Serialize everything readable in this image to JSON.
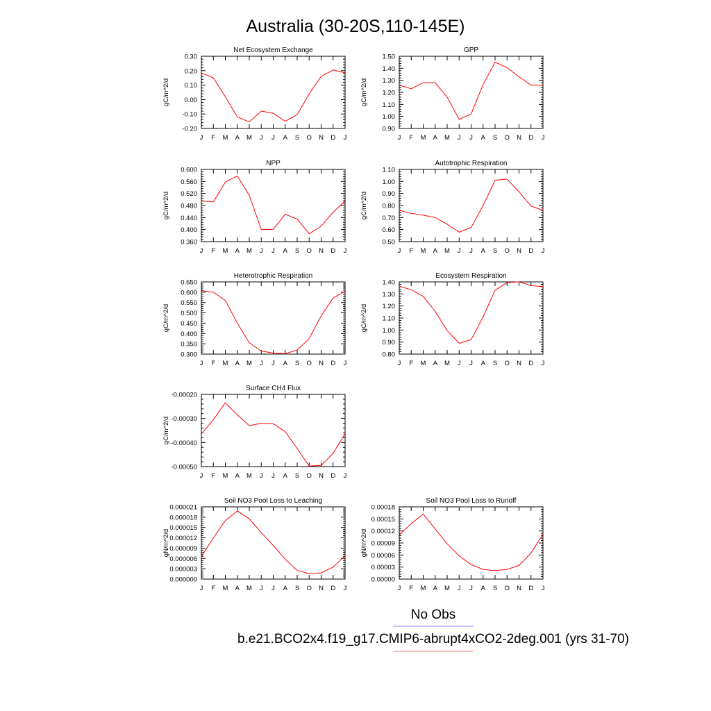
{
  "page": {
    "title": "Australia (30-20S,110-145E)"
  },
  "legend": {
    "obs_label": "No Obs",
    "obs_color": "#7b7bff",
    "case_label": "b.e21.BCO2x4.f19_g17.CMIP6-abrupt4xCO2-2deg.001 (yrs 31-70)",
    "case_color": "#ff7b7b"
  },
  "series_color": "#ff0000",
  "chart_data": [
    {
      "type": "line",
      "title": "Net Ecosystem Exchange",
      "ylabel": "gC/m^2/d",
      "categories": [
        "J",
        "F",
        "M",
        "A",
        "M",
        "J",
        "J",
        "A",
        "S",
        "O",
        "N",
        "D",
        "J"
      ],
      "yticks": [
        "0.30",
        "0.20",
        "0.10",
        "0.00",
        "-0.10",
        "-0.20"
      ],
      "ylim": [
        -0.2,
        0.3
      ],
      "values": [
        0.185,
        0.15,
        0.02,
        -0.12,
        -0.155,
        -0.08,
        -0.095,
        -0.15,
        -0.105,
        0.04,
        0.16,
        0.205,
        0.185
      ],
      "grid": false
    },
    {
      "type": "line",
      "title": "GPP",
      "ylabel": "gC/m^2/d",
      "categories": [
        "J",
        "F",
        "M",
        "A",
        "M",
        "J",
        "J",
        "A",
        "S",
        "O",
        "N",
        "D",
        "J"
      ],
      "yticks": [
        "1.50",
        "1.40",
        "1.30",
        "1.20",
        "1.10",
        "1.00",
        "0.90"
      ],
      "ylim": [
        0.9,
        1.5
      ],
      "values": [
        1.26,
        1.23,
        1.28,
        1.28,
        1.16,
        0.975,
        1.02,
        1.265,
        1.45,
        1.405,
        1.33,
        1.26,
        1.26
      ],
      "grid": false
    },
    {
      "type": "line",
      "title": "NPP",
      "ylabel": "gC/m^2/d",
      "categories": [
        "J",
        "F",
        "M",
        "A",
        "M",
        "J",
        "J",
        "A",
        "S",
        "O",
        "N",
        "D",
        "J"
      ],
      "yticks": [
        "0.600",
        "0.560",
        "0.520",
        "0.480",
        "0.440",
        "0.400",
        "0.360"
      ],
      "ylim": [
        0.36,
        0.6
      ],
      "values": [
        0.495,
        0.492,
        0.558,
        0.578,
        0.514,
        0.4,
        0.401,
        0.451,
        0.435,
        0.386,
        0.411,
        0.458,
        0.495
      ],
      "grid": false
    },
    {
      "type": "line",
      "title": "Autotrophic Respiration",
      "ylabel": "gC/m^2/d",
      "categories": [
        "J",
        "F",
        "M",
        "A",
        "M",
        "J",
        "J",
        "A",
        "S",
        "O",
        "N",
        "D",
        "J"
      ],
      "yticks": [
        "1.10",
        "1.00",
        "0.90",
        "0.80",
        "0.70",
        "0.60",
        "0.50"
      ],
      "ylim": [
        0.5,
        1.1
      ],
      "values": [
        0.76,
        0.735,
        0.72,
        0.7,
        0.645,
        0.578,
        0.618,
        0.8,
        1.01,
        1.02,
        0.915,
        0.795,
        0.76
      ],
      "grid": false
    },
    {
      "type": "line",
      "title": "Heterotrophic Respiration",
      "ylabel": "gC/m^2/d",
      "categories": [
        "J",
        "F",
        "M",
        "A",
        "M",
        "J",
        "J",
        "A",
        "S",
        "O",
        "N",
        "D",
        "J"
      ],
      "yticks": [
        "0.650",
        "0.600",
        "0.550",
        "0.500",
        "0.450",
        "0.400",
        "0.350",
        "0.300"
      ],
      "ylim": [
        0.3,
        0.65
      ],
      "values": [
        0.607,
        0.6,
        0.56,
        0.45,
        0.355,
        0.315,
        0.305,
        0.302,
        0.32,
        0.375,
        0.485,
        0.572,
        0.605
      ],
      "grid": false
    },
    {
      "type": "line",
      "title": "Ecosystem Respiration",
      "ylabel": "gC/m^2/d",
      "categories": [
        "J",
        "F",
        "M",
        "A",
        "M",
        "J",
        "J",
        "A",
        "S",
        "O",
        "N",
        "D",
        "J"
      ],
      "yticks": [
        "1.40",
        "1.30",
        "1.20",
        "1.10",
        "1.00",
        "0.90",
        "0.80"
      ],
      "ylim": [
        0.8,
        1.4
      ],
      "values": [
        1.365,
        1.335,
        1.28,
        1.155,
        0.995,
        0.89,
        0.92,
        1.11,
        1.33,
        1.395,
        1.4,
        1.37,
        1.36
      ],
      "grid": false
    },
    {
      "type": "line",
      "title": "Surface CH4 Flux",
      "ylabel": "gC/m^2/d",
      "categories": [
        "J",
        "F",
        "M",
        "A",
        "M",
        "J",
        "J",
        "A",
        "S",
        "O",
        "N",
        "D",
        "J"
      ],
      "yticks": [
        "-0.00020",
        "-0.00030",
        "-0.00040",
        "-0.00050"
      ],
      "ylim": [
        -0.0005,
        -0.0002
      ],
      "values": [
        -0.000365,
        -0.000305,
        -0.000235,
        -0.000285,
        -0.00033,
        -0.00032,
        -0.000322,
        -0.000355,
        -0.000425,
        -0.000498,
        -0.000495,
        -0.000445,
        -0.000362
      ],
      "grid": false
    },
    {
      "type": "line",
      "title": "Soil NO3 Pool Loss to Leaching",
      "ylabel": "gN/m^2/d",
      "categories": [
        "J",
        "F",
        "M",
        "A",
        "M",
        "J",
        "J",
        "A",
        "S",
        "O",
        "N",
        "D",
        "J"
      ],
      "yticks": [
        "0.000021",
        "0.000018",
        "0.000015",
        "0.000012",
        "0.000009",
        "0.000006",
        "0.000003",
        "0.000000"
      ],
      "ylim": [
        0,
        2.1e-05
      ],
      "values": [
        6.5e-06,
        1.2e-05,
        1.7e-05,
        1.98e-05,
        1.75e-05,
        1.35e-05,
        9.8e-06,
        5.8e-06,
        2.5e-06,
        1.6e-06,
        1.8e-06,
        3.5e-06,
        6.8e-06
      ],
      "grid": false
    },
    {
      "type": "line",
      "title": "Soil NO3 Pool Loss to Runoff",
      "ylabel": "gN/m^2/d",
      "categories": [
        "J",
        "F",
        "M",
        "A",
        "M",
        "J",
        "J",
        "A",
        "S",
        "O",
        "N",
        "D",
        "J"
      ],
      "yticks": [
        "0.00018",
        "0.00015",
        "0.00012",
        "0.00009",
        "0.00006",
        "0.00003",
        "0.00000"
      ],
      "ylim": [
        0,
        0.00018
      ],
      "values": [
        0.00011,
        0.000138,
        0.000162,
        0.000125,
        8.8e-05,
        5.8e-05,
        3.6e-05,
        2.4e-05,
        2.1e-05,
        2.4e-05,
        3.4e-05,
        6.5e-05,
        0.000112
      ],
      "grid": false
    }
  ]
}
